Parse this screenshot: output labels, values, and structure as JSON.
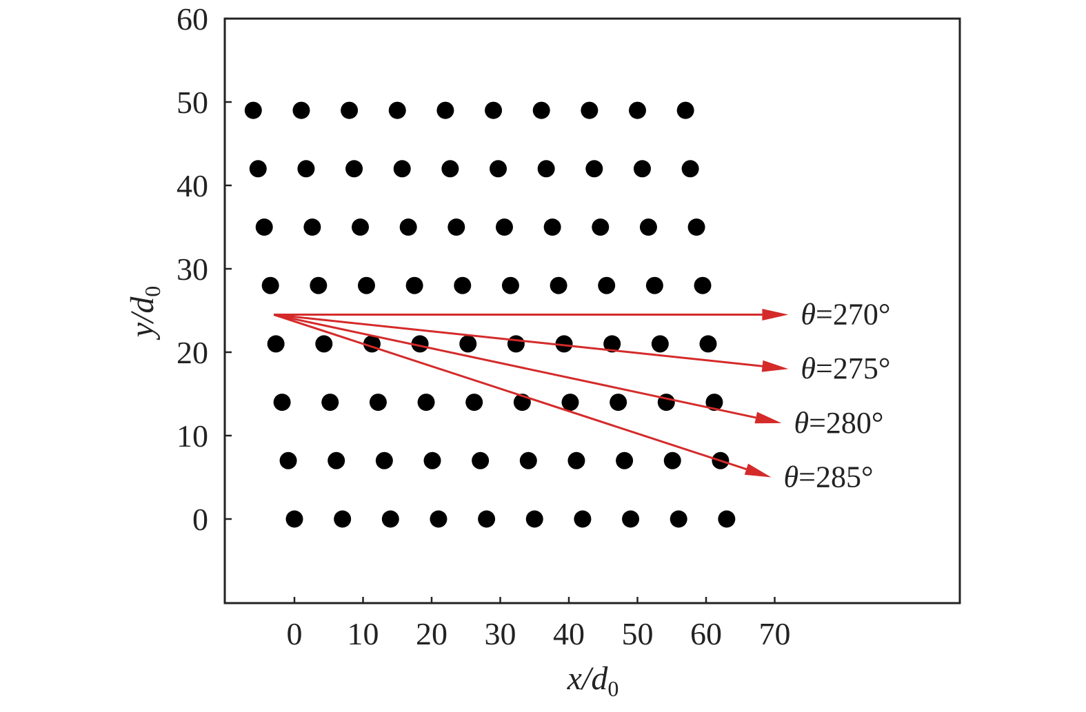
{
  "chart_data": {
    "type": "scatter",
    "title": "",
    "xlabel": {
      "main": "x/d",
      "sub": "0"
    },
    "ylabel": {
      "main": "y/d",
      "sub": "0"
    },
    "xlim": [
      -10,
      97
    ],
    "ylim": [
      -10,
      60
    ],
    "x_ticks": [
      0,
      10,
      20,
      30,
      40,
      50,
      60,
      70
    ],
    "x_tick_labels": [
      "0",
      "10",
      "20",
      "30",
      "40",
      "50",
      "60",
      "70"
    ],
    "y_ticks": [
      0,
      10,
      20,
      30,
      40,
      50,
      60
    ],
    "y_tick_labels": [
      "0",
      "10",
      "20",
      "30",
      "40",
      "50",
      "60"
    ],
    "grid": false,
    "marker_color": "#000000",
    "rows": [
      {
        "y": 0,
        "x_start": 0,
        "dx": 7,
        "count": 10
      },
      {
        "y": 7,
        "x_start": -0.9,
        "dx": 7,
        "count": 10
      },
      {
        "y": 14,
        "x_start": -1.8,
        "dx": 7,
        "count": 10
      },
      {
        "y": 21,
        "x_start": -2.7,
        "dx": 7,
        "count": 10
      },
      {
        "y": 28,
        "x_start": -3.5,
        "dx": 7,
        "count": 10
      },
      {
        "y": 35,
        "x_start": -4.4,
        "dx": 7,
        "count": 10
      },
      {
        "y": 42,
        "x_start": -5.3,
        "dx": 7,
        "count": 10
      },
      {
        "y": 49,
        "x_start": -6.0,
        "dx": 7,
        "count": 10
      }
    ],
    "arrows": {
      "color": "#d42a2a",
      "origin": {
        "x": -3,
        "y": 24.5
      },
      "items": [
        {
          "label": "θ=270°",
          "end": {
            "x": 72,
            "y": 24.5
          }
        },
        {
          "label": "θ=275°",
          "end": {
            "x": 72,
            "y": 18.0
          }
        },
        {
          "label": "θ=280°",
          "end": {
            "x": 71,
            "y": 11.5
          }
        },
        {
          "label": "θ=285°",
          "end": {
            "x": 69.5,
            "y": 5.0
          }
        }
      ]
    }
  }
}
